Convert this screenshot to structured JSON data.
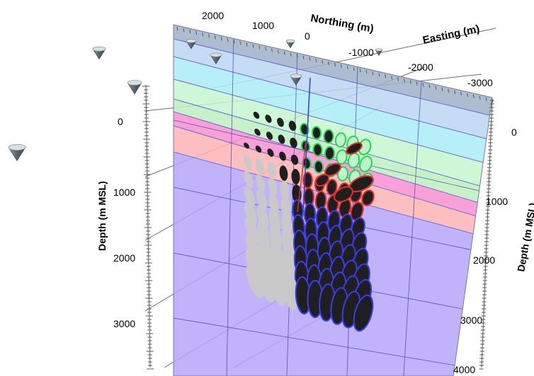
{
  "axes": {
    "northing": {
      "label": "Northing (m)",
      "ticks": [
        "2000",
        "1000",
        "0",
        "-1000"
      ]
    },
    "easting": {
      "label": "Easting (m)",
      "ticks": [
        "-2000",
        "-3000"
      ]
    },
    "depth_left": {
      "label": "Depth (m MSL)",
      "ticks": [
        "0",
        "1000",
        "2000",
        "3000"
      ]
    },
    "depth_right": {
      "label": "Depth (m MSL)",
      "ticks": [
        "0",
        "1000",
        "2000",
        "3000",
        "4000"
      ]
    }
  },
  "layers": [
    {
      "color": "#9fb0c6"
    },
    {
      "color": "#bcd6f2"
    },
    {
      "color": "#a9ecf6"
    },
    {
      "color": "#c4f6cf"
    },
    {
      "color": "#bdf0c0"
    },
    {
      "color": "#f78fd0"
    },
    {
      "color": "#fbb3b3"
    },
    {
      "color": "#b6a6fa"
    }
  ],
  "colors": {
    "ellipse_dark": "#1f1f1f",
    "ellipse_light": "#c9c9c9",
    "outline_green": "#2fd152",
    "outline_red": "#e52d2d",
    "outline_blue": "#3b3bef",
    "grid": "#3a3aa0",
    "station": "#5f6f77"
  },
  "stations": [
    {
      "name": "station-icon"
    },
    {
      "name": "station-icon"
    },
    {
      "name": "station-icon"
    },
    {
      "name": "station-icon"
    },
    {
      "name": "station-icon"
    },
    {
      "name": "station-icon"
    },
    {
      "name": "station-icon"
    },
    {
      "name": "station-icon"
    }
  ]
}
